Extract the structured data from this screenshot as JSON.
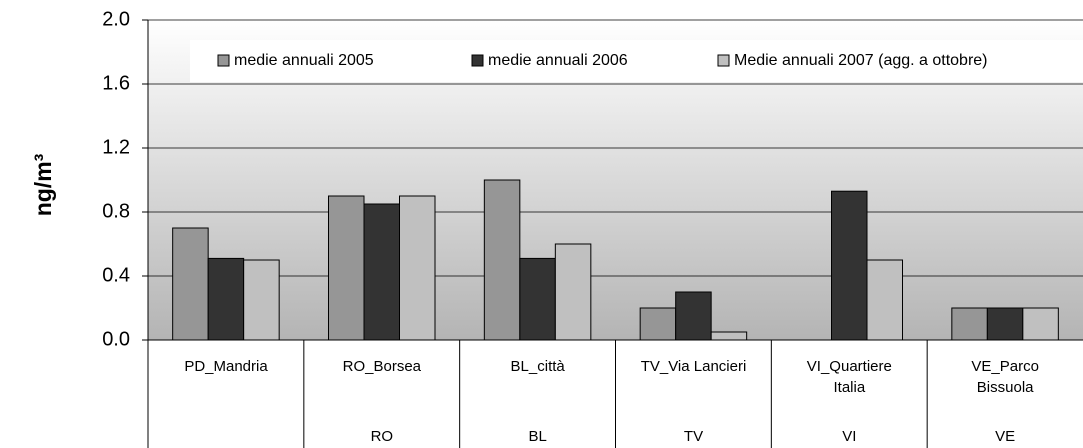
{
  "chart_data": {
    "type": "bar",
    "y_label": "ng/m³",
    "categories": [
      "PD_Mandria",
      "RO_Borsea",
      "BL_città",
      "TV_Via Lancieri",
      "VI_Quartiere\nItalia",
      "VE_Parco\nBissuola"
    ],
    "groups": [
      null,
      "RO",
      "BL",
      "TV",
      "VI",
      "VE"
    ],
    "series": [
      {
        "name": "medie annuali 2005",
        "color": "#969696",
        "values": [
          0.7,
          0.9,
          1.0,
          0.2,
          null,
          0.2
        ]
      },
      {
        "name": "medie annuali 2006",
        "color": "#333333",
        "values": [
          0.51,
          0.85,
          0.51,
          0.3,
          0.93,
          0.2
        ]
      },
      {
        "name": "Medie annuali 2007 (agg. a ottobre)",
        "color": "#c0c0c0",
        "values": [
          0.5,
          0.9,
          0.6,
          0.05,
          0.5,
          0.2
        ]
      }
    ],
    "ylim": [
      0,
      2
    ],
    "yticks": [
      {
        "value": 0,
        "label": "0.0"
      },
      0.4,
      0.8,
      1.2,
      1.6,
      {
        "value": 2,
        "label": "2.0"
      }
    ],
    "grid": true
  }
}
